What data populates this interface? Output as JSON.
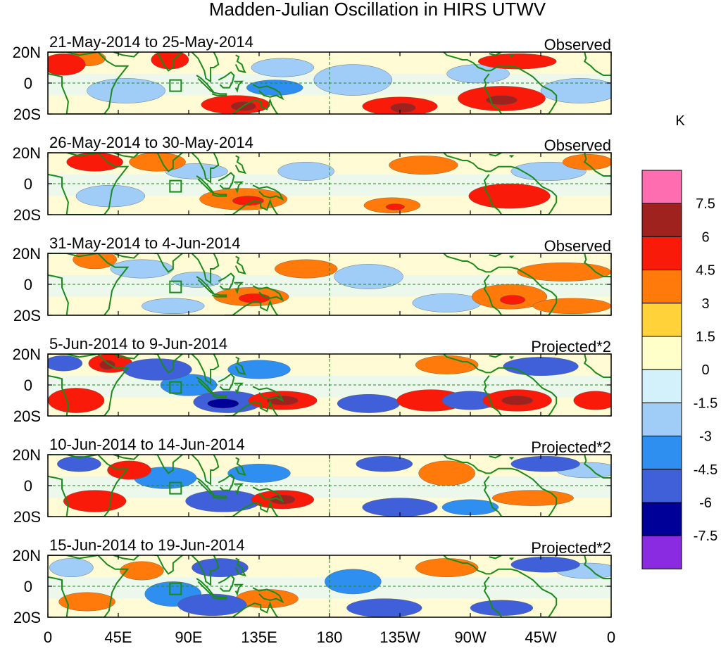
{
  "chart_data": {
    "type": "heatmap",
    "title": "Madden-Julian Oscillation in HIRS UTWV",
    "units": "K",
    "x_ticks": [
      "0",
      "45E",
      "90E",
      "135E",
      "180",
      "135W",
      "90W",
      "45W",
      "0"
    ],
    "y_ticks": [
      "20N",
      "0",
      "20S"
    ],
    "panels": [
      {
        "period": "21-May-2014 to 25-May-2014",
        "kind": "Observed",
        "cells": [
          {
            "lon": 10,
            "lat": 12,
            "dlon": 14,
            "dlat": 7,
            "level": 3
          },
          {
            "lon": 25,
            "lat": 16,
            "dlon": 12,
            "dlat": 5,
            "level": 2
          },
          {
            "lon": 78,
            "lat": 15,
            "dlon": 12,
            "dlat": 6,
            "level": 3
          },
          {
            "lon": 50,
            "lat": -5,
            "dlon": 25,
            "dlat": 8,
            "level": -1
          },
          {
            "lon": 120,
            "lat": -14,
            "dlon": 22,
            "dlat": 6,
            "level": 3
          },
          {
            "lon": 125,
            "lat": -15,
            "dlon": 8,
            "dlat": 3,
            "level": 4
          },
          {
            "lon": 145,
            "lat": -3,
            "dlon": 18,
            "dlat": 5,
            "level": -2
          },
          {
            "lon": 150,
            "lat": 10,
            "dlon": 20,
            "dlat": 6,
            "level": -1
          },
          {
            "lon": 225,
            "lat": -15,
            "dlon": 24,
            "dlat": 6,
            "level": 3
          },
          {
            "lon": 227,
            "lat": -16,
            "dlon": 8,
            "dlat": 3,
            "level": 4
          },
          {
            "lon": 290,
            "lat": -10,
            "dlon": 28,
            "dlat": 8,
            "level": 3
          },
          {
            "lon": 290,
            "lat": -11,
            "dlon": 10,
            "dlat": 3,
            "level": 4
          },
          {
            "lon": 300,
            "lat": 14,
            "dlon": 25,
            "dlat": 5,
            "level": 3
          },
          {
            "lon": 275,
            "lat": 6,
            "dlon": 20,
            "dlat": 6,
            "level": -1
          },
          {
            "lon": 340,
            "lat": -5,
            "dlon": 25,
            "dlat": 8,
            "level": -1
          },
          {
            "lon": 195,
            "lat": 2,
            "dlon": 25,
            "dlat": 10,
            "level": -1
          }
        ]
      },
      {
        "period": "26-May-2014 to 30-May-2014",
        "kind": "Observed",
        "cells": [
          {
            "lon": 30,
            "lat": 14,
            "dlon": 18,
            "dlat": 6,
            "level": 3
          },
          {
            "lon": 70,
            "lat": 14,
            "dlon": 18,
            "dlat": 6,
            "level": 2
          },
          {
            "lon": 95,
            "lat": 8,
            "dlon": 20,
            "dlat": 5,
            "level": -1
          },
          {
            "lon": 40,
            "lat": -8,
            "dlon": 22,
            "dlat": 7,
            "level": -1
          },
          {
            "lon": 125,
            "lat": -10,
            "dlon": 28,
            "dlat": 7,
            "level": 2
          },
          {
            "lon": 128,
            "lat": -11,
            "dlon": 10,
            "dlat": 3,
            "level": 3
          },
          {
            "lon": 165,
            "lat": 8,
            "dlon": 18,
            "dlat": 6,
            "level": -1
          },
          {
            "lon": 220,
            "lat": -14,
            "dlon": 18,
            "dlat": 5,
            "level": 2
          },
          {
            "lon": 222,
            "lat": -15,
            "dlon": 6,
            "dlat": 2,
            "level": 3
          },
          {
            "lon": 240,
            "lat": 12,
            "dlon": 22,
            "dlat": 6,
            "level": 2
          },
          {
            "lon": 295,
            "lat": -8,
            "dlon": 26,
            "dlat": 8,
            "level": 3
          },
          {
            "lon": 320,
            "lat": 8,
            "dlon": 24,
            "dlat": 6,
            "level": -1
          },
          {
            "lon": 345,
            "lat": 14,
            "dlon": 16,
            "dlat": 5,
            "level": 2
          }
        ]
      },
      {
        "period": "31-May-2014 to 4-Jun-2014",
        "kind": "Observed",
        "cells": [
          {
            "lon": 30,
            "lat": 16,
            "dlon": 14,
            "dlat": 6,
            "level": 2
          },
          {
            "lon": 60,
            "lat": 10,
            "dlon": 20,
            "dlat": 6,
            "level": -1
          },
          {
            "lon": 95,
            "lat": 3,
            "dlon": 16,
            "dlat": 5,
            "level": -1
          },
          {
            "lon": 130,
            "lat": -8,
            "dlon": 24,
            "dlat": 6,
            "level": 2
          },
          {
            "lon": 132,
            "lat": -9,
            "dlon": 10,
            "dlat": 3,
            "level": 3
          },
          {
            "lon": 165,
            "lat": 10,
            "dlon": 20,
            "dlat": 6,
            "level": 2
          },
          {
            "lon": 80,
            "lat": -14,
            "dlon": 20,
            "dlat": 5,
            "level": -1
          },
          {
            "lon": 205,
            "lat": 5,
            "dlon": 22,
            "dlat": 8,
            "level": -1
          },
          {
            "lon": 255,
            "lat": -12,
            "dlon": 22,
            "dlat": 6,
            "level": -1
          },
          {
            "lon": 295,
            "lat": -8,
            "dlon": 24,
            "dlat": 8,
            "level": 2
          },
          {
            "lon": 297,
            "lat": -10,
            "dlon": 8,
            "dlat": 3,
            "level": 3
          },
          {
            "lon": 335,
            "lat": -14,
            "dlon": 25,
            "dlat": 5,
            "level": 2
          },
          {
            "lon": 330,
            "lat": 8,
            "dlon": 30,
            "dlat": 6,
            "level": 2
          }
        ]
      },
      {
        "period": "5-Jun-2014 to 9-Jun-2014",
        "kind": "Projected*2",
        "cells": [
          {
            "lon": 18,
            "lat": -10,
            "dlon": 18,
            "dlat": 8,
            "level": 3
          },
          {
            "lon": 10,
            "lat": 14,
            "dlon": 12,
            "dlat": 5,
            "level": -3
          },
          {
            "lon": 40,
            "lat": 14,
            "dlon": 14,
            "dlat": 6,
            "level": 3
          },
          {
            "lon": 38,
            "lat": 13,
            "dlon": 5,
            "dlat": 3,
            "level": 4
          },
          {
            "lon": 70,
            "lat": 10,
            "dlon": 22,
            "dlat": 7,
            "level": -3
          },
          {
            "lon": 90,
            "lat": 0,
            "dlon": 18,
            "dlat": 7,
            "level": -2
          },
          {
            "lon": 115,
            "lat": -11,
            "dlon": 22,
            "dlat": 7,
            "level": -3
          },
          {
            "lon": 112,
            "lat": -12,
            "dlon": 10,
            "dlat": 3,
            "level": -4
          },
          {
            "lon": 150,
            "lat": -10,
            "dlon": 22,
            "dlat": 6,
            "level": 3
          },
          {
            "lon": 150,
            "lat": -10,
            "dlon": 10,
            "dlat": 3,
            "level": 4
          },
          {
            "lon": 135,
            "lat": 10,
            "dlon": 20,
            "dlat": 6,
            "level": -2
          },
          {
            "lon": 205,
            "lat": -12,
            "dlon": 20,
            "dlat": 6,
            "level": -3
          },
          {
            "lon": 245,
            "lat": -10,
            "dlon": 22,
            "dlat": 7,
            "level": 3
          },
          {
            "lon": 255,
            "lat": 13,
            "dlon": 20,
            "dlat": 6,
            "level": 2
          },
          {
            "lon": 270,
            "lat": -10,
            "dlon": 18,
            "dlat": 6,
            "level": -3
          },
          {
            "lon": 300,
            "lat": -10,
            "dlon": 22,
            "dlat": 7,
            "level": 3
          },
          {
            "lon": 300,
            "lat": -10,
            "dlon": 10,
            "dlat": 3,
            "level": 4
          },
          {
            "lon": 315,
            "lat": 12,
            "dlon": 24,
            "dlat": 6,
            "level": -3
          },
          {
            "lon": 350,
            "lat": -10,
            "dlon": 14,
            "dlat": 6,
            "level": 3
          }
        ]
      },
      {
        "period": "10-Jun-2014 to 14-Jun-2014",
        "kind": "Projected*2",
        "cells": [
          {
            "lon": 20,
            "lat": 14,
            "dlon": 14,
            "dlat": 5,
            "level": -3
          },
          {
            "lon": 30,
            "lat": -10,
            "dlon": 20,
            "dlat": 7,
            "level": 3
          },
          {
            "lon": 52,
            "lat": 10,
            "dlon": 14,
            "dlat": 6,
            "level": 3
          },
          {
            "lon": 75,
            "lat": 5,
            "dlon": 20,
            "dlat": 7,
            "level": -2
          },
          {
            "lon": 112,
            "lat": -10,
            "dlon": 24,
            "dlat": 7,
            "level": -3
          },
          {
            "lon": 150,
            "lat": -9,
            "dlon": 20,
            "dlat": 6,
            "level": 3
          },
          {
            "lon": 150,
            "lat": -9,
            "dlon": 8,
            "dlat": 3,
            "level": 4
          },
          {
            "lon": 135,
            "lat": 8,
            "dlon": 20,
            "dlat": 6,
            "level": -2
          },
          {
            "lon": 225,
            "lat": -14,
            "dlon": 24,
            "dlat": 6,
            "level": -3
          },
          {
            "lon": 215,
            "lat": 14,
            "dlon": 18,
            "dlat": 5,
            "level": -3
          },
          {
            "lon": 255,
            "lat": 8,
            "dlon": 18,
            "dlat": 8,
            "level": 2
          },
          {
            "lon": 270,
            "lat": -14,
            "dlon": 18,
            "dlat": 5,
            "level": -2
          },
          {
            "lon": 310,
            "lat": -8,
            "dlon": 26,
            "dlat": 5,
            "level": 2
          },
          {
            "lon": 318,
            "lat": 14,
            "dlon": 22,
            "dlat": 5,
            "level": -3
          },
          {
            "lon": 345,
            "lat": 10,
            "dlon": 20,
            "dlat": 5,
            "level": -1
          }
        ]
      },
      {
        "period": "15-Jun-2014 to 19-Jun-2014",
        "kind": "Projected*2",
        "cells": [
          {
            "lon": 15,
            "lat": 12,
            "dlon": 14,
            "dlat": 6,
            "level": -1
          },
          {
            "lon": 25,
            "lat": -10,
            "dlon": 18,
            "dlat": 6,
            "level": 2
          },
          {
            "lon": 60,
            "lat": 10,
            "dlon": 14,
            "dlat": 6,
            "level": 2
          },
          {
            "lon": 80,
            "lat": -5,
            "dlon": 18,
            "dlat": 8,
            "level": -2
          },
          {
            "lon": 105,
            "lat": -12,
            "dlon": 22,
            "dlat": 7,
            "level": -3
          },
          {
            "lon": 110,
            "lat": 12,
            "dlon": 18,
            "dlat": 6,
            "level": -3
          },
          {
            "lon": 140,
            "lat": -8,
            "dlon": 20,
            "dlat": 6,
            "level": 2
          },
          {
            "lon": 195,
            "lat": 3,
            "dlon": 18,
            "dlat": 8,
            "level": -2
          },
          {
            "lon": 215,
            "lat": -14,
            "dlon": 24,
            "dlat": 6,
            "level": -3
          },
          {
            "lon": 255,
            "lat": 12,
            "dlon": 20,
            "dlat": 6,
            "level": 2
          },
          {
            "lon": 290,
            "lat": -14,
            "dlon": 20,
            "dlat": 5,
            "level": -3
          },
          {
            "lon": 318,
            "lat": 14,
            "dlon": 22,
            "dlat": 5,
            "level": -3
          },
          {
            "lon": 345,
            "lat": 10,
            "dlon": 20,
            "dlat": 5,
            "level": -1
          }
        ]
      }
    ],
    "legend": {
      "colors": [
        "#8a2be2",
        "#000098",
        "#3f60d8",
        "#2e8ff0",
        "#9fcdf8",
        "#d3f1fb",
        "#ffffc9",
        "#ffd23a",
        "#ff7a0a",
        "#fa1a0a",
        "#a0221e",
        "#ff6db1"
      ],
      "labels": [
        "-7.5",
        "-6",
        "-4.5",
        "-3",
        "-1.5",
        "0",
        "1.5",
        "3",
        "4.5",
        "6",
        "7.5"
      ]
    },
    "land_color": "#1a8a1a",
    "grid_color": "#1a8a1a"
  }
}
